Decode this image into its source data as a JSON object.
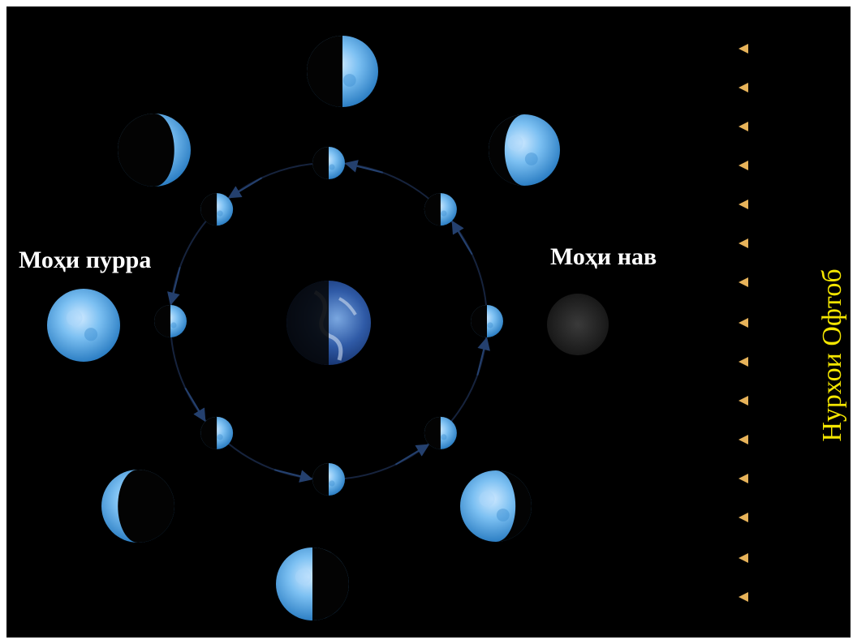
{
  "labels": {
    "full_moon": "Моҳи пурра",
    "new_moon": "Моҳи нав",
    "sunlight": "Нурхои Офтоб"
  },
  "colors": {
    "background": "#000000",
    "label_text": "#ffffff",
    "sunlight_text": "#f4e600",
    "sun_ray": "#d9a441",
    "moon_light": "#6db7ee",
    "moon_dark": "#0a0a0a",
    "orbit": "#1c2c48"
  },
  "icons": {
    "earth": "earth-icon",
    "moon": "moon-phase-icon",
    "ray": "arrow-left-icon"
  }
}
